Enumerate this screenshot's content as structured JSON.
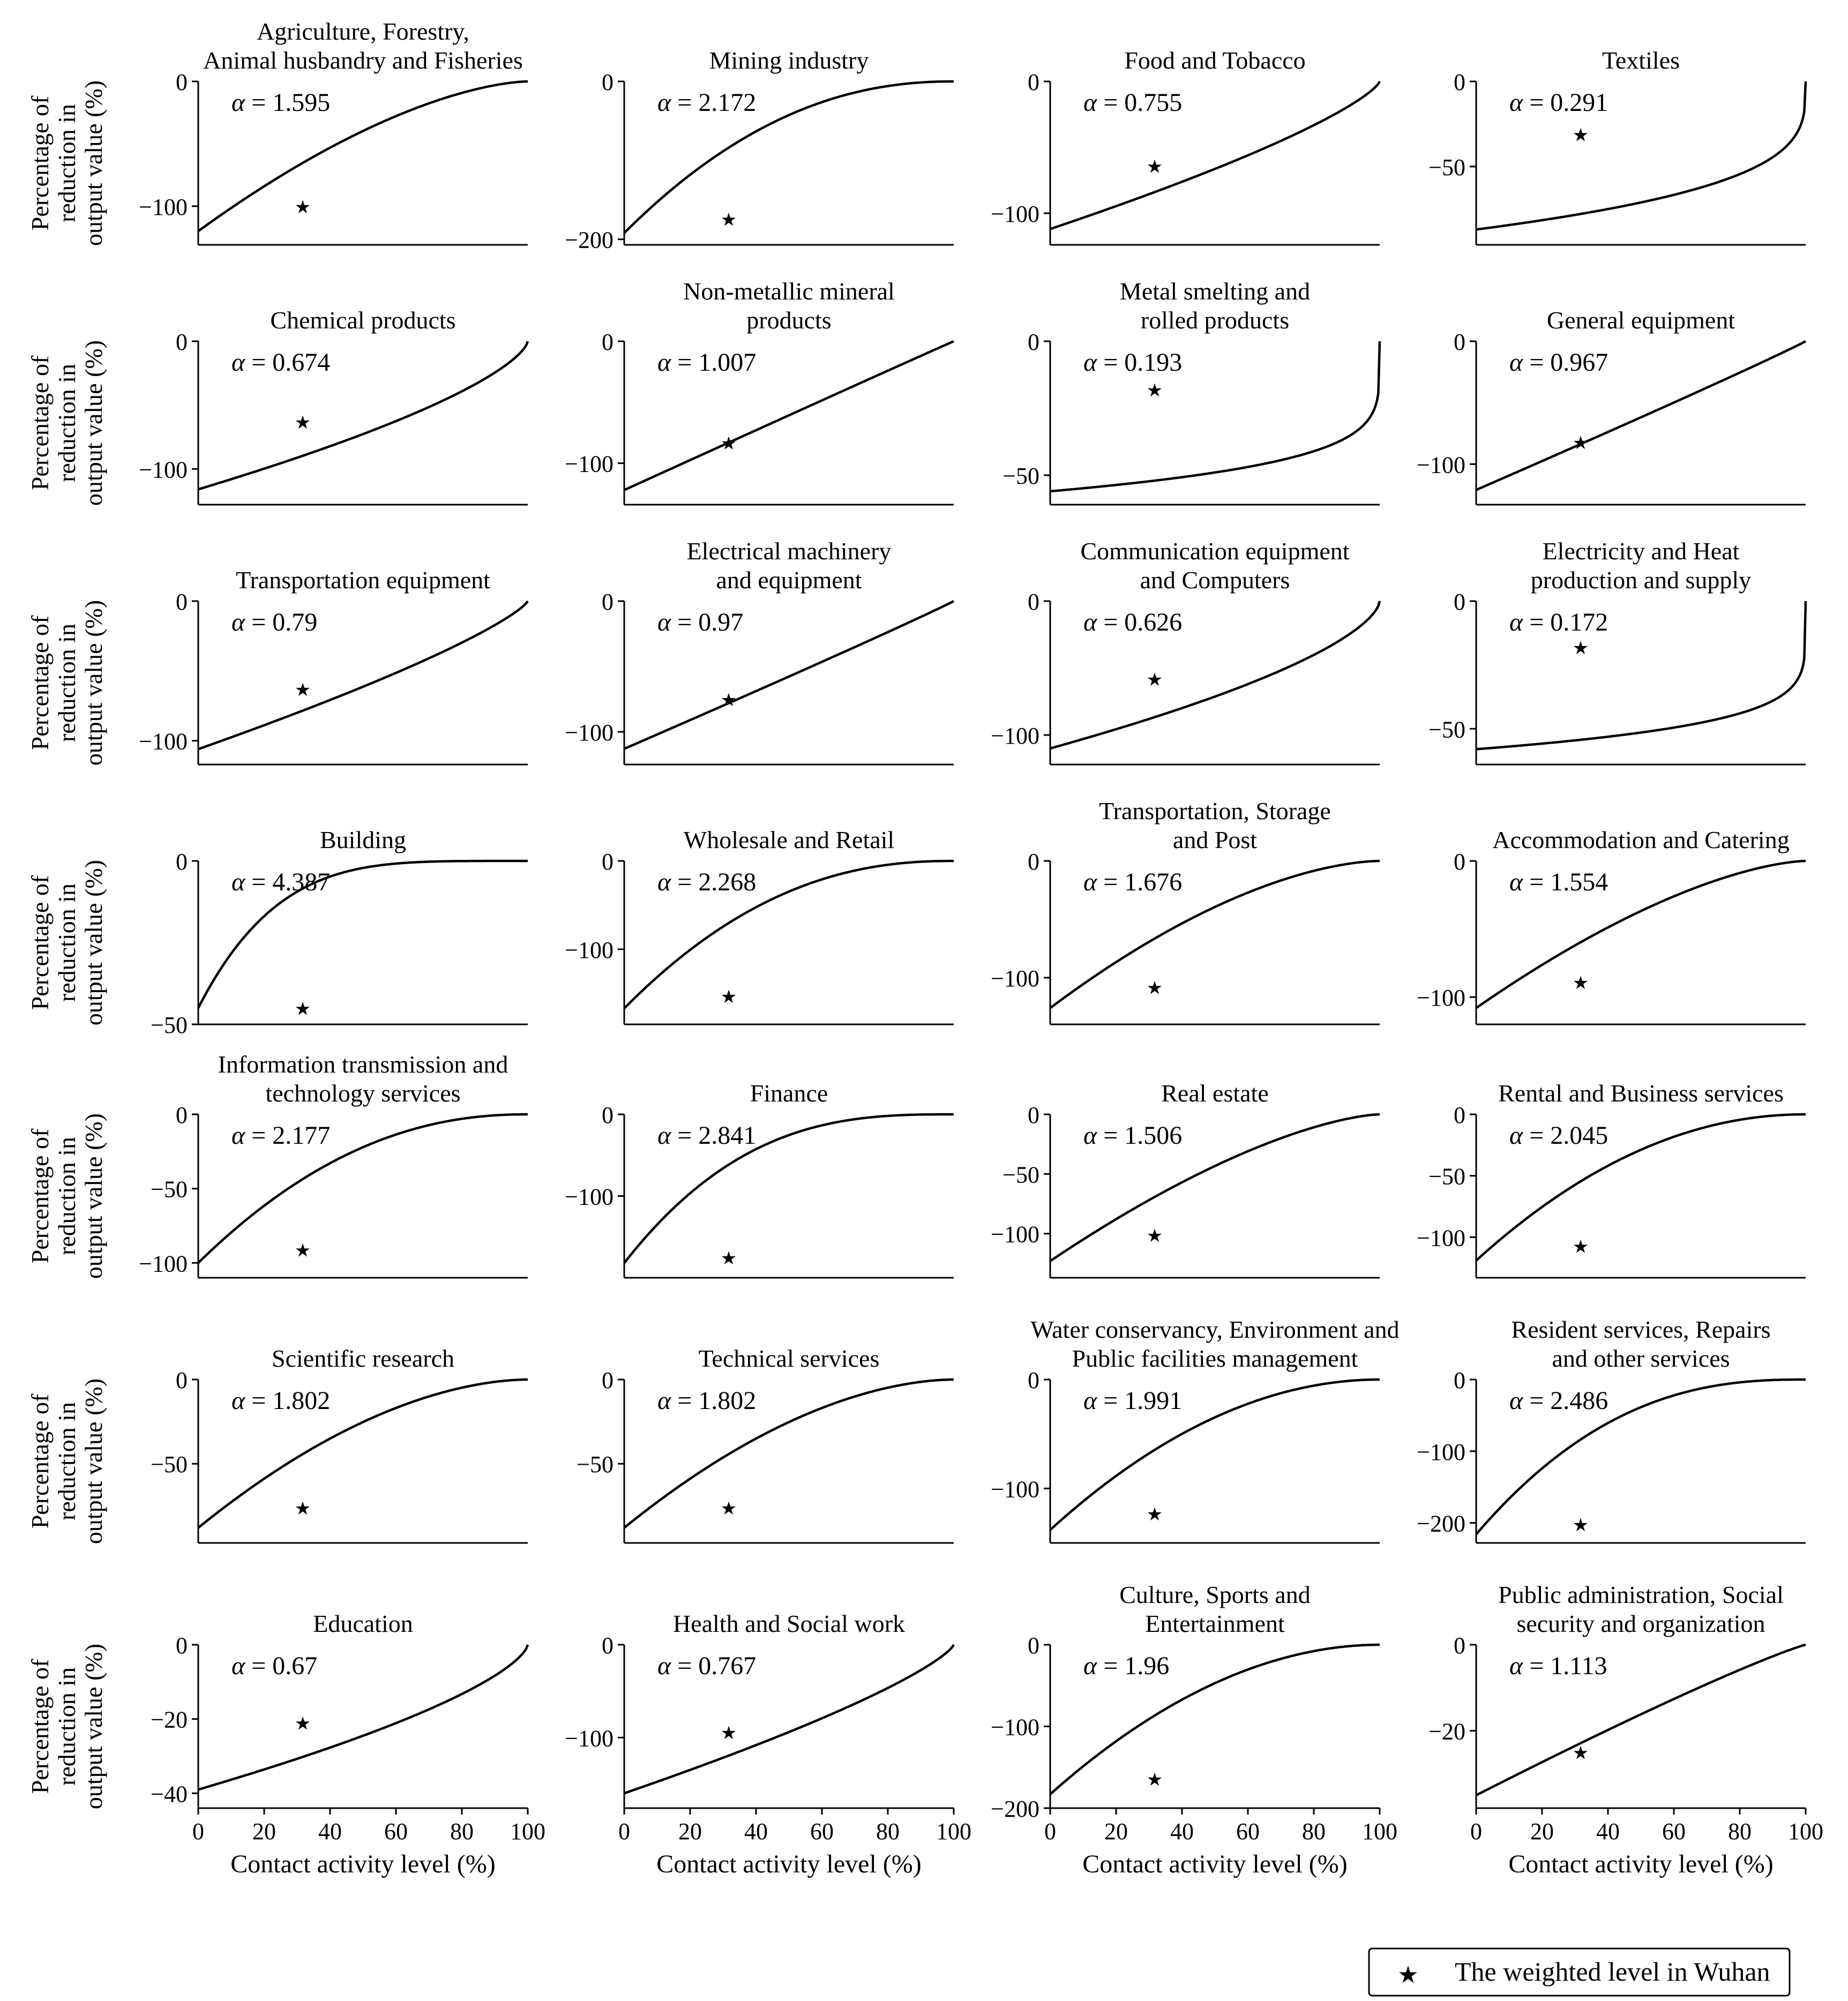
{
  "figure": {
    "x_axis_label": "Contact activity level (%)",
    "y_axis_label_lines": [
      "Percentage of",
      "reduction in",
      "output value (%)"
    ],
    "alpha_symbol": "α",
    "legend_label": "The weighted level in Wuhan",
    "colors": {
      "curve": "#000000",
      "marker": "#ff0000",
      "axes": "#000000",
      "background": "#ffffff"
    }
  },
  "chart_data": [
    {
      "type": "line",
      "title_lines": [
        "Agriculture, Forestry,",
        "Animal husbandry and Fisheries"
      ],
      "alpha": "1.595",
      "series": {
        "x_range": [
          0,
          100
        ],
        "y_at_0": -120,
        "y_at_100": 0
      },
      "marker": {
        "x": 31.7,
        "y": -100
      },
      "ylim": [
        -131,
        0
      ],
      "yticks": [
        0,
        -100
      ],
      "xticks": [],
      "xlabel": "",
      "ylabel": "Percentage of reduction in output value (%)"
    },
    {
      "type": "line",
      "title_lines": [
        "Mining industry"
      ],
      "alpha": "2.172",
      "series": {
        "x_range": [
          0,
          100
        ],
        "y_at_0": -192,
        "y_at_100": 0
      },
      "marker": {
        "x": 31.7,
        "y": -174
      },
      "ylim": [
        -207,
        0
      ],
      "yticks": [
        0,
        -200
      ],
      "xticks": [],
      "xlabel": "",
      "ylabel": ""
    },
    {
      "type": "line",
      "title_lines": [
        "Food and Tobacco"
      ],
      "alpha": "0.755",
      "series": {
        "x_range": [
          0,
          100
        ],
        "y_at_0": -112,
        "y_at_100": 0
      },
      "marker": {
        "x": 31.7,
        "y": -64
      },
      "ylim": [
        -124,
        0
      ],
      "yticks": [
        0,
        -100
      ],
      "xticks": [],
      "xlabel": "",
      "ylabel": ""
    },
    {
      "type": "line",
      "title_lines": [
        "Textiles"
      ],
      "alpha": "0.291",
      "series": {
        "x_range": [
          0,
          100
        ],
        "y_at_0": -87,
        "y_at_100": 0
      },
      "marker": {
        "x": 31.7,
        "y": -31
      },
      "ylim": [
        -96,
        0
      ],
      "yticks": [
        0,
        -50
      ],
      "xticks": [],
      "xlabel": "",
      "ylabel": ""
    },
    {
      "type": "line",
      "title_lines": [
        "Chemical products"
      ],
      "alpha": "0.674",
      "series": {
        "x_range": [
          0,
          100
        ],
        "y_at_0": -116,
        "y_at_100": 0
      },
      "marker": {
        "x": 31.7,
        "y": -63
      },
      "ylim": [
        -128,
        0
      ],
      "yticks": [
        0,
        -100
      ],
      "xticks": [],
      "xlabel": "",
      "ylabel": "Percentage of reduction in output value (%)"
    },
    {
      "type": "line",
      "title_lines": [
        "Non-metallic mineral",
        "products"
      ],
      "alpha": "1.007",
      "series": {
        "x_range": [
          0,
          100
        ],
        "y_at_0": -122,
        "y_at_100": 0
      },
      "marker": {
        "x": 31.7,
        "y": -83
      },
      "ylim": [
        -134,
        0
      ],
      "yticks": [
        0,
        -100
      ],
      "xticks": [],
      "xlabel": "",
      "ylabel": ""
    },
    {
      "type": "line",
      "title_lines": [
        "Metal smelting and",
        "rolled products"
      ],
      "alpha": "0.193",
      "series": {
        "x_range": [
          0,
          100
        ],
        "y_at_0": -56,
        "y_at_100": 0
      },
      "marker": {
        "x": 31.7,
        "y": -18
      },
      "ylim": [
        -61,
        0
      ],
      "yticks": [
        0,
        -50
      ],
      "xticks": [],
      "xlabel": "",
      "ylabel": ""
    },
    {
      "type": "line",
      "title_lines": [
        "General equipment"
      ],
      "alpha": "0.967",
      "series": {
        "x_range": [
          0,
          100
        ],
        "y_at_0": -121,
        "y_at_100": 0
      },
      "marker": {
        "x": 31.7,
        "y": -82
      },
      "ylim": [
        -133,
        0
      ],
      "yticks": [
        0,
        -100
      ],
      "xticks": [],
      "xlabel": "",
      "ylabel": ""
    },
    {
      "type": "line",
      "title_lines": [
        "Transportation equipment"
      ],
      "alpha": "0.79",
      "series": {
        "x_range": [
          0,
          100
        ],
        "y_at_0": -106,
        "y_at_100": 0
      },
      "marker": {
        "x": 31.7,
        "y": -63
      },
      "ylim": [
        -117,
        0
      ],
      "yticks": [
        0,
        -100
      ],
      "xticks": [],
      "xlabel": "",
      "ylabel": "Percentage of reduction in output value (%)"
    },
    {
      "type": "line",
      "title_lines": [
        "Electrical machinery",
        "and equipment"
      ],
      "alpha": "0.97",
      "series": {
        "x_range": [
          0,
          100
        ],
        "y_at_0": -113,
        "y_at_100": 0
      },
      "marker": {
        "x": 31.7,
        "y": -75
      },
      "ylim": [
        -125,
        0
      ],
      "yticks": [
        0,
        -100
      ],
      "xticks": [],
      "xlabel": "",
      "ylabel": ""
    },
    {
      "type": "line",
      "title_lines": [
        "Communication equipment",
        "and Computers"
      ],
      "alpha": "0.626",
      "series": {
        "x_range": [
          0,
          100
        ],
        "y_at_0": -110,
        "y_at_100": 0
      },
      "marker": {
        "x": 31.7,
        "y": -58
      },
      "ylim": [
        -122,
        0
      ],
      "yticks": [
        0,
        -100
      ],
      "xticks": [],
      "xlabel": "",
      "ylabel": ""
    },
    {
      "type": "line",
      "title_lines": [
        "Electricity and Heat",
        "production and supply"
      ],
      "alpha": "0.172",
      "series": {
        "x_range": [
          0,
          100
        ],
        "y_at_0": -58,
        "y_at_100": 0
      },
      "marker": {
        "x": 31.7,
        "y": -18
      },
      "ylim": [
        -64,
        0
      ],
      "yticks": [
        0,
        -50
      ],
      "xticks": [],
      "xlabel": "",
      "ylabel": ""
    },
    {
      "type": "line",
      "title_lines": [
        "Building"
      ],
      "alpha": "4.387",
      "series": {
        "x_range": [
          0,
          100
        ],
        "y_at_0": -45,
        "y_at_100": 0
      },
      "marker": {
        "x": 31.7,
        "y": -45
      },
      "ylim": [
        -50,
        0
      ],
      "yticks": [
        0,
        -50
      ],
      "xticks": [],
      "xlabel": "",
      "ylabel": "Percentage of reduction in output value (%)"
    },
    {
      "type": "line",
      "title_lines": [
        "Wholesale and Retail"
      ],
      "alpha": "2.268",
      "series": {
        "x_range": [
          0,
          100
        ],
        "y_at_0": -167,
        "y_at_100": 0
      },
      "marker": {
        "x": 31.7,
        "y": -153
      },
      "ylim": [
        -185,
        0
      ],
      "yticks": [
        0,
        -100
      ],
      "xticks": [],
      "xlabel": "",
      "ylabel": ""
    },
    {
      "type": "line",
      "title_lines": [
        "Transportation, Storage",
        "and Post"
      ],
      "alpha": "1.676",
      "series": {
        "x_range": [
          0,
          100
        ],
        "y_at_0": -126,
        "y_at_100": 0
      },
      "marker": {
        "x": 31.7,
        "y": -108
      },
      "ylim": [
        -140,
        0
      ],
      "yticks": [
        0,
        -100
      ],
      "xticks": [],
      "xlabel": "",
      "ylabel": ""
    },
    {
      "type": "line",
      "title_lines": [
        "Accommodation and Catering"
      ],
      "alpha": "1.554",
      "series": {
        "x_range": [
          0,
          100
        ],
        "y_at_0": -108,
        "y_at_100": 0
      },
      "marker": {
        "x": 31.7,
        "y": -89
      },
      "ylim": [
        -120,
        0
      ],
      "yticks": [
        0,
        -100
      ],
      "xticks": [],
      "xlabel": "",
      "ylabel": ""
    },
    {
      "type": "line",
      "title_lines": [
        "Information transmission and",
        "technology services"
      ],
      "alpha": "2.177",
      "series": {
        "x_range": [
          0,
          100
        ],
        "y_at_0": -100,
        "y_at_100": 0
      },
      "marker": {
        "x": 31.7,
        "y": -91
      },
      "ylim": [
        -110,
        0
      ],
      "yticks": [
        0,
        -50,
        -100
      ],
      "xticks": [],
      "xlabel": "",
      "ylabel": "Percentage of reduction in output value (%)"
    },
    {
      "type": "line",
      "title_lines": [
        "Finance"
      ],
      "alpha": "2.841",
      "series": {
        "x_range": [
          0,
          100
        ],
        "y_at_0": -182,
        "y_at_100": 0
      },
      "marker": {
        "x": 31.7,
        "y": -175
      },
      "ylim": [
        -200,
        0
      ],
      "yticks": [
        0,
        -100
      ],
      "xticks": [],
      "xlabel": "",
      "ylabel": ""
    },
    {
      "type": "line",
      "title_lines": [
        "Real estate"
      ],
      "alpha": "1.506",
      "series": {
        "x_range": [
          0,
          100
        ],
        "y_at_0": -123,
        "y_at_100": 0
      },
      "marker": {
        "x": 31.7,
        "y": -101
      },
      "ylim": [
        -137,
        0
      ],
      "yticks": [
        0,
        -50,
        -100
      ],
      "xticks": [],
      "xlabel": "",
      "ylabel": ""
    },
    {
      "type": "line",
      "title_lines": [
        "Rental and Business services"
      ],
      "alpha": "2.045",
      "series": {
        "x_range": [
          0,
          100
        ],
        "y_at_0": -119,
        "y_at_100": 0
      },
      "marker": {
        "x": 31.7,
        "y": -107
      },
      "ylim": [
        -133,
        0
      ],
      "yticks": [
        0,
        -50,
        -100
      ],
      "xticks": [],
      "xlabel": "",
      "ylabel": ""
    },
    {
      "type": "line",
      "title_lines": [
        "Scientific research"
      ],
      "alpha": "1.802",
      "series": {
        "x_range": [
          0,
          100
        ],
        "y_at_0": -88,
        "y_at_100": 0
      },
      "marker": {
        "x": 31.7,
        "y": -76
      },
      "ylim": [
        -97,
        0
      ],
      "yticks": [
        0,
        -50
      ],
      "xticks": [],
      "xlabel": "",
      "ylabel": "Percentage of reduction in output value (%)"
    },
    {
      "type": "line",
      "title_lines": [
        "Technical services"
      ],
      "alpha": "1.802",
      "series": {
        "x_range": [
          0,
          100
        ],
        "y_at_0": -88,
        "y_at_100": 0
      },
      "marker": {
        "x": 31.7,
        "y": -76
      },
      "ylim": [
        -97,
        0
      ],
      "yticks": [
        0,
        -50
      ],
      "xticks": [],
      "xlabel": "",
      "ylabel": ""
    },
    {
      "type": "line",
      "title_lines": [
        "Water conservancy, Environment and",
        "Public facilities management"
      ],
      "alpha": "1.991",
      "series": {
        "x_range": [
          0,
          100
        ],
        "y_at_0": -138,
        "y_at_100": 0
      },
      "marker": {
        "x": 31.7,
        "y": -123
      },
      "ylim": [
        -150,
        0
      ],
      "yticks": [
        0,
        -100
      ],
      "xticks": [],
      "xlabel": "",
      "ylabel": ""
    },
    {
      "type": "line",
      "title_lines": [
        "Resident services, Repairs",
        "and other services"
      ],
      "alpha": "2.486",
      "series": {
        "x_range": [
          0,
          100
        ],
        "y_at_0": -216,
        "y_at_100": 0
      },
      "marker": {
        "x": 31.7,
        "y": -202
      },
      "ylim": [
        -228,
        0
      ],
      "yticks": [
        0,
        -100,
        -200
      ],
      "xticks": [],
      "xlabel": "",
      "ylabel": ""
    },
    {
      "type": "line",
      "title_lines": [
        "Education"
      ],
      "alpha": "0.67",
      "series": {
        "x_range": [
          0,
          100
        ],
        "y_at_0": -39,
        "y_at_100": 0
      },
      "marker": {
        "x": 31.7,
        "y": -21
      },
      "ylim": [
        -44,
        0
      ],
      "yticks": [
        0,
        -20,
        -40
      ],
      "xticks": [
        0,
        20,
        40,
        60,
        80,
        100
      ],
      "xlabel": "Contact activity level (%)",
      "ylabel": "Percentage of reduction in output value (%)"
    },
    {
      "type": "line",
      "title_lines": [
        "Health and Social work"
      ],
      "alpha": "0.767",
      "series": {
        "x_range": [
          0,
          100
        ],
        "y_at_0": -160,
        "y_at_100": 0
      },
      "marker": {
        "x": 31.7,
        "y": -94
      },
      "ylim": [
        -176,
        0
      ],
      "yticks": [
        0,
        -100
      ],
      "xticks": [
        0,
        20,
        40,
        60,
        80,
        100
      ],
      "xlabel": "Contact activity level (%)",
      "ylabel": ""
    },
    {
      "type": "line",
      "title_lines": [
        "Culture, Sports and",
        "Entertainment"
      ],
      "alpha": "1.96",
      "series": {
        "x_range": [
          0,
          100
        ],
        "y_at_0": -183,
        "y_at_100": 0
      },
      "marker": {
        "x": 31.7,
        "y": -164
      },
      "ylim": [
        -200,
        0
      ],
      "yticks": [
        0,
        -100,
        -200
      ],
      "xticks": [
        0,
        20,
        40,
        60,
        80,
        100
      ],
      "xlabel": "Contact activity level (%)",
      "ylabel": ""
    },
    {
      "type": "line",
      "title_lines": [
        "Public administration, Social",
        "security and organization"
      ],
      "alpha": "1.113",
      "series": {
        "x_range": [
          0,
          100
        ],
        "y_at_0": -35,
        "y_at_100": 0
      },
      "marker": {
        "x": 31.7,
        "y": -25
      },
      "ylim": [
        -38,
        0
      ],
      "yticks": [
        0,
        -20
      ],
      "xticks": [
        0,
        20,
        40,
        60,
        80,
        100
      ],
      "xlabel": "Contact activity level (%)",
      "ylabel": ""
    }
  ]
}
